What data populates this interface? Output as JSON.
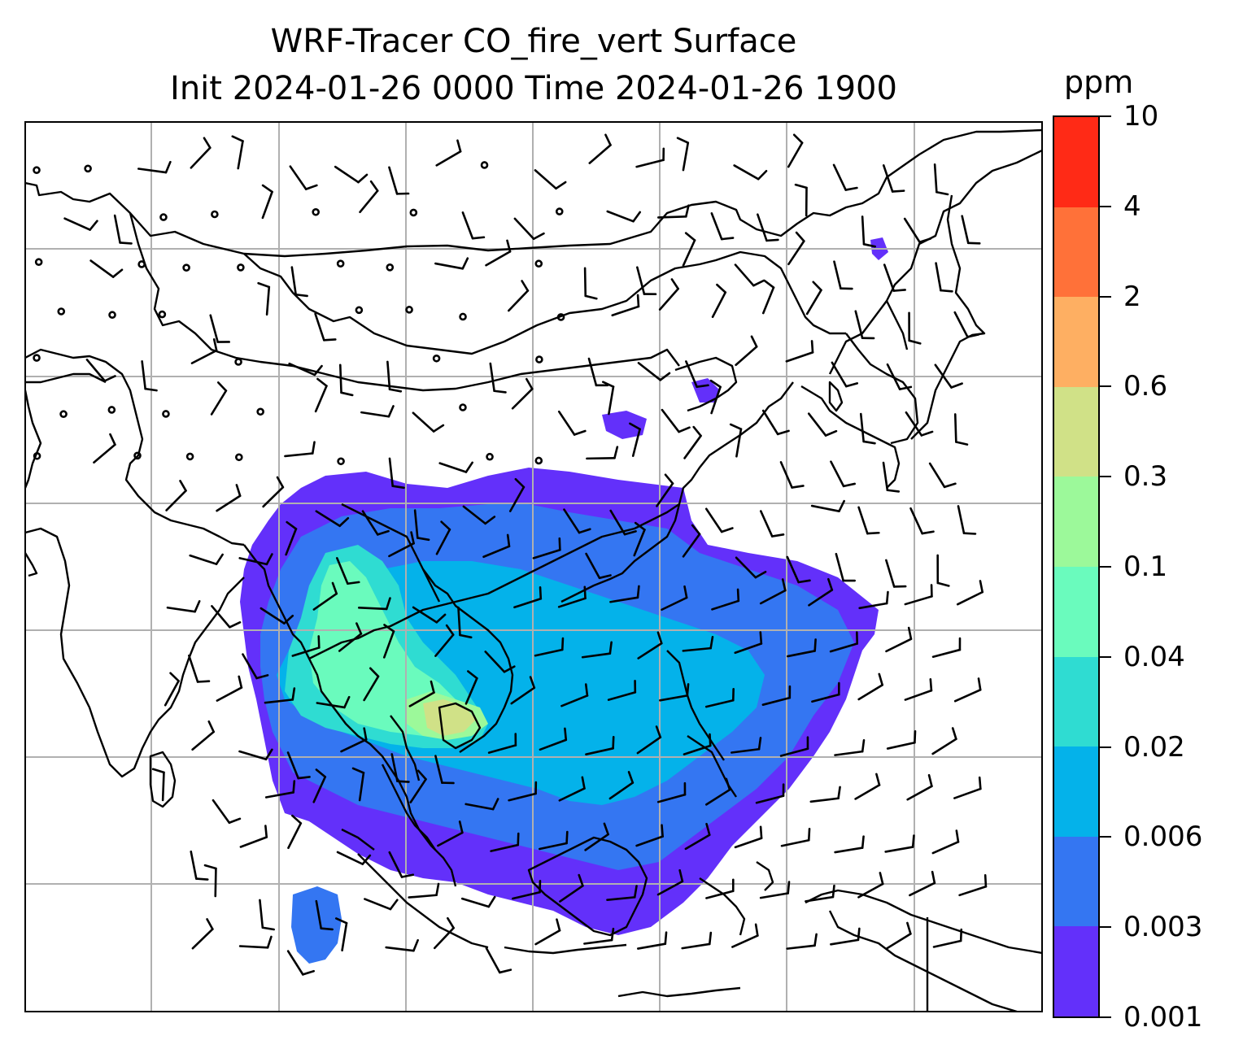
{
  "title": {
    "line1": "WRF-Tracer CO_fire_vert Surface",
    "line2": "Init 2024-01-26 0000 Time 2024-01-26 1900"
  },
  "colorbar": {
    "units": "ppm",
    "levels": [
      "0.001",
      "0.003",
      "0.006",
      "0.02",
      "0.04",
      "0.1",
      "0.3",
      "0.6",
      "2",
      "4",
      "10"
    ],
    "colors": [
      "#6330fa",
      "#3476f2",
      "#04b2ea",
      "#2fdcd2",
      "#6afbbd",
      "#9cf99a",
      "#d0e187",
      "#feaf62",
      "#ff7139",
      "#ff2a16"
    ]
  },
  "map": {
    "region": "South and Southeast Asia with China",
    "background": "#ffffff",
    "gridline_color": "#b0b0b0",
    "coastline_color": "#000000",
    "overlay": "wind barbs"
  }
}
